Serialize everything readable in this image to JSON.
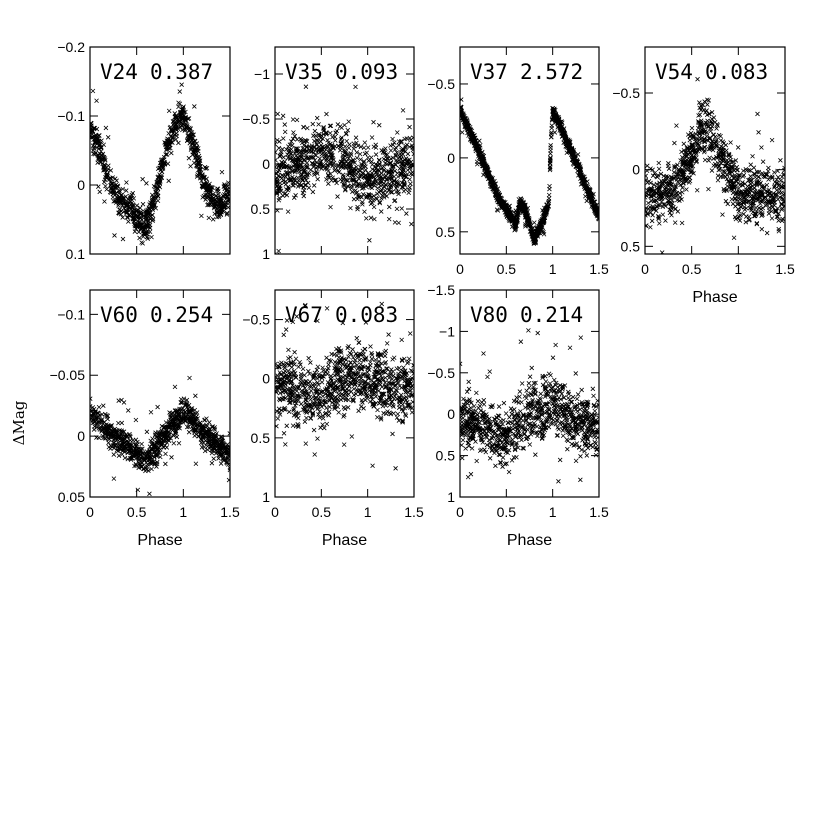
{
  "figure": {
    "shared_ylabel": "ΔMag",
    "phase_label": "Phase"
  },
  "chart_data": [
    {
      "type": "scatter",
      "star": "V24",
      "period": "0.387",
      "xlim": [
        0,
        1.5
      ],
      "ylim": [
        -0.2,
        0.1
      ],
      "y_inverted": true,
      "xticks": [],
      "yticks": [
        "−0.2",
        "−0.1",
        "0",
        "0.1"
      ],
      "ytick_values": [
        -0.2,
        -0.1,
        0,
        0.1
      ],
      "xlabel": "",
      "series": [
        {
          "values": {
            "model": "sine",
            "amplitude": 0.07,
            "offset": 0.01,
            "peak_phase": 0.0,
            "scatter": 0.022,
            "x": [
              0.0,
              0.1,
              0.2,
              0.3,
              0.4,
              0.5,
              0.6,
              0.7,
              0.8,
              0.9,
              1.0,
              1.1,
              1.2,
              1.3,
              1.4,
              1.5
            ],
            "y": [
              -0.08,
              -0.05,
              -0.01,
              0.02,
              0.03,
              0.05,
              0.06,
              0.02,
              -0.04,
              -0.08,
              -0.1,
              -0.06,
              -0.01,
              0.02,
              0.03,
              0.01
            ]
          }
        }
      ]
    },
    {
      "type": "scatter",
      "star": "V35",
      "period": "0.093",
      "xlim": [
        0,
        1.5
      ],
      "ylim": [
        -1.3,
        1.0
      ],
      "y_inverted": true,
      "xticks": [],
      "yticks": [
        "−1",
        "−0.5",
        "0",
        "0.5",
        "1"
      ],
      "ytick_values": [
        -1,
        -0.5,
        0,
        0.5,
        1
      ],
      "xlabel": "",
      "series": [
        {
          "values": {
            "model": "noise",
            "offset": 0.15,
            "scatter": 0.35,
            "x": [
              0.0,
              0.25,
              0.5,
              0.75,
              1.0,
              1.25,
              1.5
            ],
            "y": [
              0.1,
              0.05,
              -0.2,
              0.0,
              0.2,
              0.1,
              0.0
            ]
          }
        }
      ]
    },
    {
      "type": "scatter",
      "star": "V37",
      "period": "2.572",
      "xlim": [
        0,
        1.5
      ],
      "ylim": [
        -0.75,
        0.65
      ],
      "y_inverted": true,
      "xticks": [
        "0",
        "0.5",
        "1",
        "1.5"
      ],
      "xtick_values": [
        0,
        0.5,
        1,
        1.5
      ],
      "yticks": [
        "−0.5",
        "0",
        "0.5"
      ],
      "ytick_values": [
        -0.5,
        0,
        0.5
      ],
      "xlabel": "",
      "series": [
        {
          "values": {
            "model": "sawtooth",
            "scatter": 0.04,
            "x": [
              0.0,
              0.2,
              0.4,
              0.6,
              0.65,
              0.7,
              0.8,
              0.9,
              0.96,
              0.98,
              1.0,
              1.2,
              1.4,
              1.5
            ],
            "y": [
              -0.32,
              -0.05,
              0.25,
              0.45,
              0.3,
              0.35,
              0.55,
              0.42,
              0.3,
              -0.1,
              -0.32,
              -0.05,
              0.25,
              0.4
            ]
          }
        }
      ]
    },
    {
      "type": "scatter",
      "star": "V54",
      "period": "0.083",
      "xlim": [
        0,
        1.5
      ],
      "ylim": [
        -0.8,
        0.55
      ],
      "y_inverted": true,
      "xticks": [
        "0",
        "0.5",
        "1",
        "1.5"
      ],
      "xtick_values": [
        0,
        0.5,
        1,
        1.5
      ],
      "yticks": [
        "−0.5",
        "0",
        "0.5"
      ],
      "ytick_values": [
        -0.5,
        0,
        0.5
      ],
      "xlabel": "Phase",
      "series": [
        {
          "values": {
            "model": "hump",
            "offset": 0.18,
            "amplitude": 0.5,
            "peak_phase": 0.65,
            "scatter": 0.18,
            "x": [
              0.0,
              0.3,
              0.5,
              0.65,
              0.8,
              1.0,
              1.5
            ],
            "y": [
              0.18,
              0.15,
              -0.1,
              -0.32,
              -0.1,
              0.15,
              0.18
            ]
          }
        }
      ]
    },
    {
      "type": "scatter",
      "star": "V60",
      "period": "0.254",
      "xlim": [
        0,
        1.5
      ],
      "ylim": [
        -0.12,
        0.05
      ],
      "y_inverted": true,
      "xticks": [
        "0",
        "0.5",
        "1",
        "1.5"
      ],
      "xtick_values": [
        0,
        0.5,
        1,
        1.5
      ],
      "yticks": [
        "−0.1",
        "−0.05",
        "0",
        "0.05"
      ],
      "ytick_values": [
        -0.1,
        -0.05,
        0,
        0.05
      ],
      "xlabel": "Phase",
      "series": [
        {
          "values": {
            "model": "sine",
            "amplitude": 0.02,
            "offset": 0.0,
            "peak_phase": 0.0,
            "scatter": 0.012,
            "x": [
              0.0,
              0.25,
              0.5,
              0.6,
              0.75,
              1.0,
              1.25,
              1.5
            ],
            "y": [
              -0.02,
              0.0,
              0.015,
              0.02,
              0.005,
              -0.02,
              0.0,
              0.015
            ]
          }
        }
      ]
    },
    {
      "type": "scatter",
      "star": "V67",
      "period": "0.083",
      "xlim": [
        0,
        1.5
      ],
      "ylim": [
        -0.75,
        1.0
      ],
      "y_inverted": true,
      "xticks": [
        "0",
        "0.5",
        "1",
        "1.5"
      ],
      "xtick_values": [
        0,
        0.5,
        1,
        1.5
      ],
      "yticks": [
        "−0.5",
        "0",
        "0.5",
        "1"
      ],
      "ytick_values": [
        -0.5,
        0,
        0.5,
        1
      ],
      "xlabel": "Phase",
      "series": [
        {
          "values": {
            "model": "noise",
            "offset": 0.1,
            "scatter": 0.28,
            "x": [
              0.0,
              0.25,
              0.5,
              0.75,
              1.0,
              1.25,
              1.5
            ],
            "y": [
              0.05,
              0.1,
              0.15,
              -0.05,
              0.0,
              0.1,
              0.05
            ]
          }
        }
      ]
    },
    {
      "type": "scatter",
      "star": "V80",
      "period": "0.214",
      "xlim": [
        0,
        1.5
      ],
      "ylim": [
        -1.5,
        1.0
      ],
      "y_inverted": true,
      "xticks": [
        "0",
        "0.5",
        "1",
        "1.5"
      ],
      "xtick_values": [
        0,
        0.5,
        1,
        1.5
      ],
      "yticks": [
        "−1.5",
        "−1",
        "−0.5",
        "0",
        "0.5",
        "1"
      ],
      "ytick_values": [
        -1.5,
        -1,
        -0.5,
        0,
        0.5,
        1
      ],
      "xlabel": "Phase",
      "series": [
        {
          "values": {
            "model": "noise",
            "offset": 0.15,
            "scatter": 0.35,
            "x": [
              0.0,
              0.25,
              0.5,
              0.75,
              1.0,
              1.25,
              1.5
            ],
            "y": [
              0.1,
              0.15,
              0.3,
              0.0,
              -0.1,
              0.1,
              0.15
            ]
          }
        }
      ]
    }
  ]
}
